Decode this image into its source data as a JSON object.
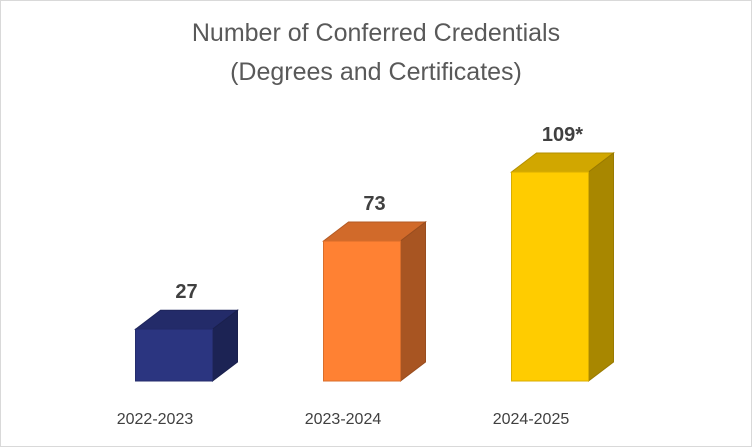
{
  "chart_data": {
    "type": "bar",
    "title_lines": [
      "Number of Conferred Credentials",
      "(Degrees and Certificates)"
    ],
    "categories": [
      "2022-2023",
      "2023-2024",
      "2024-2025"
    ],
    "values": [
      27,
      73,
      109
    ],
    "data_labels": [
      "27",
      "73",
      "109*"
    ],
    "colors": [
      "#2b3580",
      "#ff8133",
      "#ffcc00"
    ],
    "xlabel": "",
    "ylabel": "",
    "ylim": [
      0,
      109
    ],
    "grid": false,
    "legend": "none",
    "style": "3d-column"
  }
}
